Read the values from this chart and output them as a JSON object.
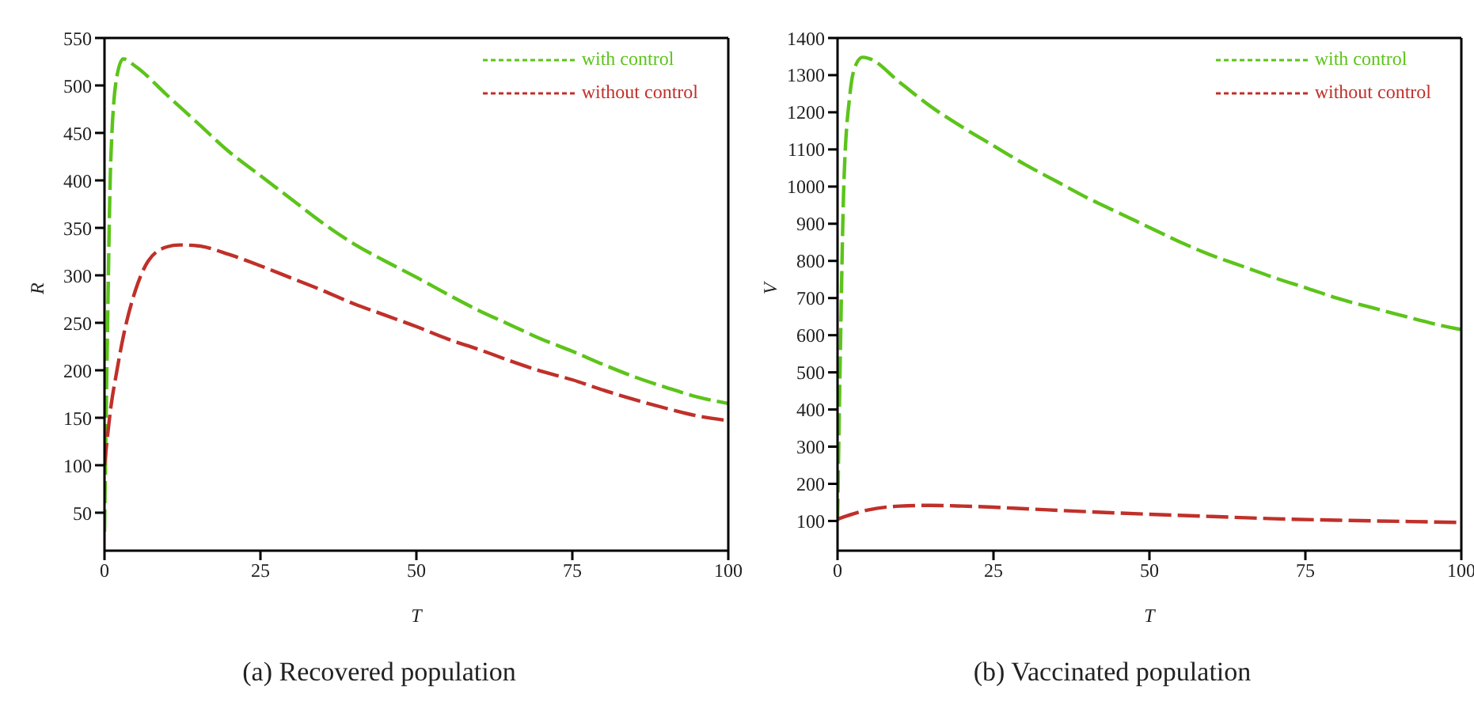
{
  "chart_data": [
    {
      "type": "line",
      "title": "(a) Recovered population",
      "xlabel": "T",
      "ylabel": "R",
      "xlim": [
        0,
        100
      ],
      "xticks": [
        0,
        25,
        50,
        75,
        100
      ],
      "ylim": [
        10,
        550
      ],
      "yticks": [
        50,
        100,
        150,
        200,
        250,
        300,
        350,
        400,
        450,
        500,
        550
      ],
      "legend": "top right",
      "marker": "none",
      "line_style": "dashed",
      "series": [
        {
          "name": "with control",
          "color": "#5cc41a",
          "x": [
            0,
            0.5,
            1,
            2,
            3,
            5,
            10,
            15,
            20,
            25,
            30,
            35,
            40,
            45,
            50,
            55,
            60,
            65,
            70,
            75,
            80,
            85,
            90,
            95,
            100
          ],
          "values": [
            30,
            250,
            420,
            510,
            528,
            520,
            490,
            460,
            430,
            405,
            380,
            355,
            333,
            315,
            298,
            280,
            263,
            248,
            233,
            220,
            206,
            193,
            182,
            172,
            165
          ]
        },
        {
          "name": "without control",
          "color": "#c0302a",
          "x": [
            0,
            1,
            2,
            3,
            5,
            7,
            10,
            12,
            15,
            20,
            25,
            30,
            35,
            40,
            45,
            50,
            55,
            60,
            65,
            70,
            75,
            80,
            85,
            90,
            95,
            100
          ],
          "values": [
            100,
            160,
            200,
            235,
            285,
            315,
            330,
            332,
            331,
            322,
            310,
            297,
            284,
            270,
            258,
            246,
            233,
            222,
            210,
            199,
            190,
            179,
            169,
            160,
            152,
            147
          ]
        }
      ]
    },
    {
      "type": "line",
      "title": "(b) Vaccinated population",
      "xlabel": "T",
      "ylabel": "V",
      "xlim": [
        0,
        100
      ],
      "xticks": [
        0,
        25,
        50,
        75,
        100
      ],
      "ylim": [
        20,
        1400
      ],
      "yticks": [
        100,
        200,
        300,
        400,
        500,
        600,
        700,
        800,
        900,
        1000,
        1100,
        1200,
        1300,
        1400
      ],
      "legend": "top right",
      "marker": "none",
      "line_style": "dashed",
      "series": [
        {
          "name": "with control",
          "color": "#5cc41a",
          "x": [
            0,
            0.5,
            1,
            2,
            3,
            4,
            5,
            10,
            15,
            20,
            25,
            30,
            35,
            40,
            45,
            50,
            55,
            60,
            65,
            70,
            75,
            80,
            85,
            90,
            95,
            100
          ],
          "values": [
            100,
            600,
            1000,
            1250,
            1330,
            1348,
            1345,
            1280,
            1215,
            1160,
            1110,
            1060,
            1015,
            970,
            930,
            890,
            850,
            815,
            785,
            755,
            728,
            700,
            677,
            655,
            633,
            615
          ]
        },
        {
          "name": "without control",
          "color": "#c0302a",
          "x": [
            0,
            5,
            10,
            15,
            20,
            25,
            30,
            40,
            50,
            60,
            70,
            80,
            90,
            100
          ],
          "values": [
            105,
            130,
            140,
            142,
            140,
            137,
            133,
            125,
            118,
            112,
            106,
            102,
            99,
            96
          ]
        }
      ]
    }
  ]
}
